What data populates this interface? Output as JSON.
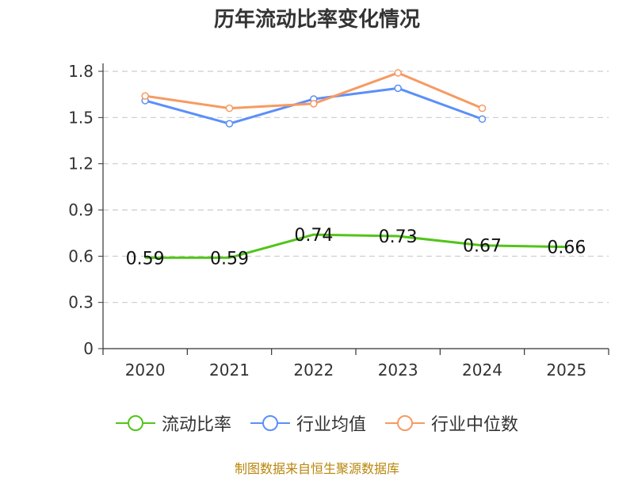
{
  "chart_data": {
    "type": "line",
    "title": "历年流动比率变化情况",
    "categories": [
      "2020",
      "2021",
      "2022",
      "2023",
      "2024",
      "2025"
    ],
    "yticks": [
      "0",
      "0.3",
      "0.6",
      "0.9",
      "1.2",
      "1.5",
      "1.8"
    ],
    "ylim": [
      0,
      1.8
    ],
    "xlabel": "",
    "ylabel": "",
    "grid": true,
    "legend_position": "bottom",
    "series": [
      {
        "name": "流动比率",
        "color": "#52c41a",
        "values": [
          0.59,
          0.59,
          0.74,
          0.73,
          0.67,
          0.66
        ],
        "labels": [
          "0.59",
          "0.59",
          "0.74",
          "0.73",
          "0.67",
          "0.66"
        ]
      },
      {
        "name": "行业均值",
        "color": "#5b8ff9",
        "values": [
          1.61,
          1.46,
          1.62,
          1.69,
          1.49,
          null
        ]
      },
      {
        "name": "行业中位数",
        "color": "#f79a62",
        "values": [
          1.64,
          1.56,
          1.59,
          1.79,
          1.56,
          null
        ]
      }
    ]
  },
  "source": "制图数据来自恒生聚源数据库"
}
